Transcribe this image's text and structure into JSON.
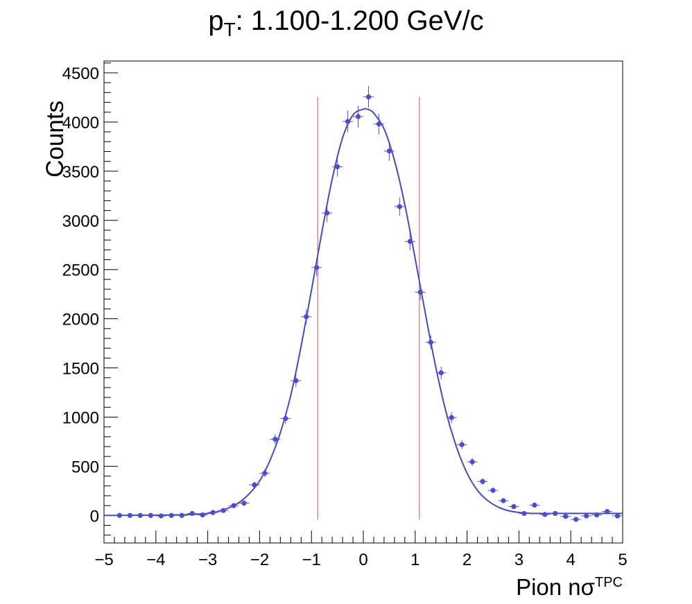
{
  "chart_data": {
    "type": "scatter",
    "title_main": "p",
    "title_sub": "T",
    "title_rest": ": 1.100-1.200 GeV/c",
    "xlabel_main": "Pion nσ",
    "xlabel_sup": "TPC",
    "ylabel": "Counts",
    "xlim": [
      -5,
      5
    ],
    "ylim": [
      -280,
      4620
    ],
    "x_ticks": [
      -5,
      -4,
      -3,
      -2,
      -1,
      0,
      1,
      2,
      3,
      4,
      5
    ],
    "x_tick_labels": [
      "−5",
      "−4",
      "−3",
      "−2",
      "−1",
      "0",
      "1",
      "2",
      "3",
      "4",
      "5"
    ],
    "y_ticks": [
      0,
      500,
      1000,
      1500,
      2000,
      2500,
      3000,
      3500,
      4000,
      4500
    ],
    "y_tick_labels": [
      "0",
      "500",
      "1000",
      "1500",
      "2000",
      "2500",
      "3000",
      "3500",
      "4000",
      "4500"
    ],
    "grid": false,
    "colors": {
      "points": "#4b4bd6",
      "fit": "#4646d2",
      "cut_lines": "#e05050",
      "axis": "#000000"
    },
    "series": [
      {
        "type": "errorbar",
        "x_halfwidth": 0.1,
        "x": [
          -4.7,
          -4.5,
          -4.3,
          -4.1,
          -3.9,
          -3.7,
          -3.5,
          -3.3,
          -3.1,
          -2.9,
          -2.7,
          -2.5,
          -2.3,
          -2.1,
          -1.9,
          -1.7,
          -1.5,
          -1.3,
          -1.1,
          -0.9,
          -0.7,
          -0.5,
          -0.3,
          -0.1,
          0.1,
          0.3,
          0.5,
          0.7,
          0.9,
          1.1,
          1.3,
          1.5,
          1.7,
          1.9,
          2.1,
          2.3,
          2.5,
          2.7,
          2.9,
          3.1,
          3.3,
          3.5,
          3.7,
          3.9,
          4.1,
          4.3,
          4.5,
          4.7,
          4.9
        ],
        "y": [
          0,
          0,
          0,
          0,
          -5,
          0,
          0,
          20,
          5,
          30,
          50,
          100,
          125,
          310,
          430,
          775,
          985,
          1370,
          2020,
          2520,
          3075,
          3545,
          4005,
          4055,
          4255,
          3980,
          3705,
          3140,
          2785,
          2270,
          1760,
          1450,
          995,
          720,
          545,
          345,
          255,
          150,
          90,
          20,
          105,
          10,
          20,
          -10,
          -40,
          -5,
          5,
          40,
          -5
        ],
        "y_err": [
          8,
          8,
          8,
          8,
          8,
          8,
          8,
          12,
          10,
          15,
          18,
          25,
          28,
          35,
          40,
          50,
          55,
          65,
          75,
          85,
          95,
          100,
          110,
          110,
          110,
          105,
          100,
          95,
          90,
          80,
          70,
          65,
          55,
          45,
          40,
          32,
          28,
          22,
          18,
          12,
          18,
          10,
          12,
          10,
          12,
          10,
          10,
          15,
          10
        ]
      },
      {
        "type": "line",
        "x": [
          -5.0,
          -4.6,
          -4.2,
          -3.8,
          -3.4,
          -3.0,
          -2.8,
          -2.6,
          -2.4,
          -2.2,
          -2.0,
          -1.8,
          -1.6,
          -1.4,
          -1.2,
          -1.0,
          -0.8,
          -0.6,
          -0.4,
          -0.2,
          0.0,
          0.1,
          0.2,
          0.4,
          0.6,
          0.8,
          1.0,
          1.2,
          1.4,
          1.6,
          1.8,
          2.0,
          2.2,
          2.4,
          2.6,
          2.8,
          3.0,
          3.2,
          3.4,
          3.8,
          4.2,
          4.6,
          5.0
        ],
        "y": [
          0,
          1,
          2,
          4,
          8,
          20,
          40,
          75,
          130,
          220,
          350,
          560,
          840,
          1220,
          1720,
          2290,
          2880,
          3420,
          3840,
          4070,
          4130,
          4125,
          4090,
          3930,
          3610,
          3160,
          2610,
          2040,
          1500,
          1040,
          690,
          430,
          255,
          150,
          85,
          48,
          30,
          22,
          20,
          20,
          20,
          20,
          20
        ]
      },
      {
        "type": "vline",
        "x": [
          -0.88,
          1.08
        ],
        "y_range": [
          -45,
          4255
        ]
      }
    ]
  }
}
